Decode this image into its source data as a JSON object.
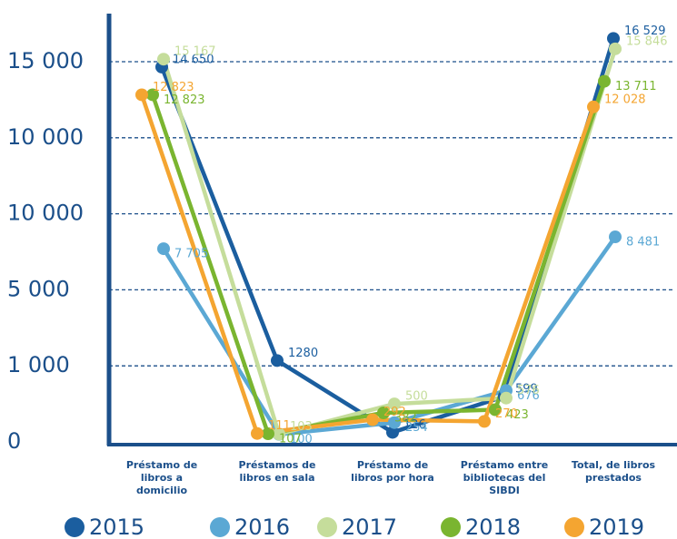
{
  "chart_data": {
    "type": "line",
    "categories": [
      "Préstamo de libros a domicilio",
      "Préstamos de libros en sala",
      "Préstamo de libros por hora",
      "Préstamo entre bibliotecas del SIBDI",
      "Total, de libros prestados"
    ],
    "ylim": [
      0,
      15000
    ],
    "yticks": [
      0,
      {
        "value": 1000,
        "label": "1 000"
      },
      {
        "value": 5000,
        "label": "5 000"
      },
      {
        "value": 10000,
        "label": "10 000"
      },
      {
        "value": 10000,
        "label": "10 000"
      },
      {
        "value": 15000,
        "label": "15 000"
      }
    ],
    "grid": true,
    "legend": "bottom",
    "series": [
      {
        "name": "2015",
        "color": "#1b5e9f",
        "values": [
          14650,
          1280,
          126,
          599,
          16529
        ],
        "value_labels": [
          "14 650",
          "1280",
          "126",
          "599",
          "16 529"
        ]
      },
      {
        "name": "2016",
        "color": "#5ba8d4",
        "values": [
          7705,
          100,
          254,
          676,
          8481
        ],
        "value_labels": [
          "7 705",
          "100",
          "254",
          "676",
          "8 481"
        ]
      },
      {
        "name": "2017",
        "color": "#c5dd9b",
        "values": [
          15167,
          103,
          500,
          576,
          15846
        ],
        "value_labels": [
          "15 167",
          "103",
          "500",
          "576",
          "15 846"
        ]
      },
      {
        "name": "2018",
        "color": "#7ab530",
        "values": [
          12823,
          107,
          382,
          423,
          13711
        ],
        "value_labels": [
          "12 823",
          "107",
          "382",
          "423",
          "13 711"
        ]
      },
      {
        "name": "2019",
        "color": "#f4a531",
        "values": [
          12823,
          111,
          292,
          270,
          12028
        ],
        "value_labels": [
          "12 823",
          "111",
          "292",
          "270",
          "12 028"
        ]
      }
    ]
  }
}
